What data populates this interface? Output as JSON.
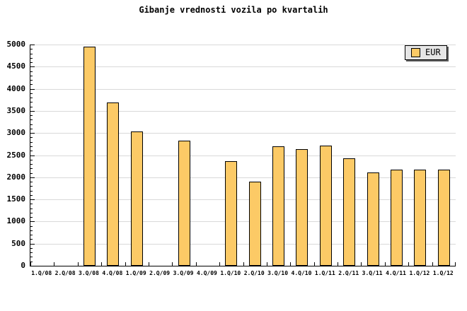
{
  "colors": {
    "bar_fill": "#FCCA66",
    "bar_border": "#000000",
    "gridline": "#D9D9D9",
    "axis": "#000000",
    "legend_background": "#E6E6E6",
    "legend_shadow": "#5E5E5E",
    "background": "#FFFFFF"
  },
  "chart_data": {
    "type": "bar",
    "title": "Gibanje vrednosti vozila po kvartalih",
    "categories": [
      "1.Q/08",
      "2.Q/08",
      "3.Q/08",
      "4.Q/08",
      "1.Q/09",
      "2.Q/09",
      "3.Q/09",
      "4.Q/09",
      "1.Q/10",
      "2.Q/10",
      "3.Q/10",
      "4.Q/10",
      "1.Q/11",
      "2.Q/11",
      "3.Q/11",
      "4.Q/11",
      "1.Q/12",
      "1.Q/12"
    ],
    "series": [
      {
        "name": "EUR",
        "values": [
          null,
          null,
          4950,
          3690,
          3040,
          null,
          2830,
          null,
          2370,
          1900,
          2700,
          2640,
          2710,
          2430,
          2110,
          2170,
          2170,
          2170
        ]
      }
    ],
    "xlabel": "",
    "ylabel": "",
    "ylim": [
      0,
      5000
    ],
    "ytick_interval": 500,
    "yminor_interval": 100,
    "grid": "horizontal",
    "legend_position": "top-right"
  }
}
